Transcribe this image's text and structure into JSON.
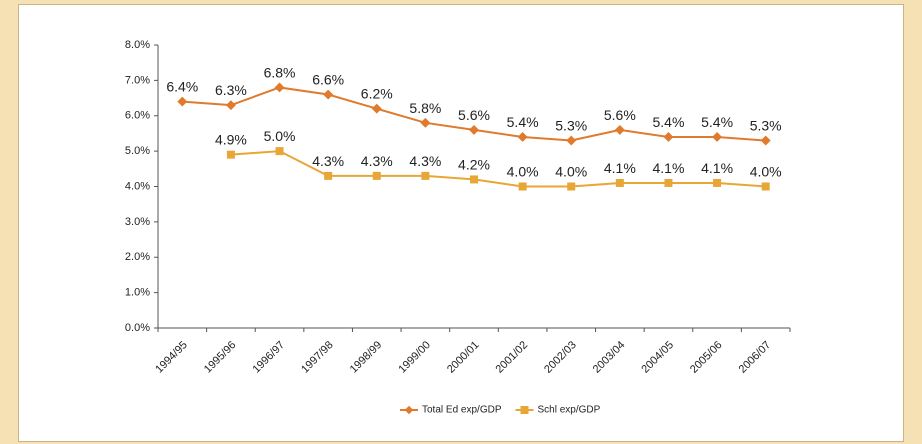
{
  "chart_data": {
    "type": "line",
    "categories": [
      "1994/95",
      "1995/96",
      "1996/97",
      "1997/98",
      "1998/99",
      "1999/00",
      "2000/01",
      "2001/02",
      "2002/03",
      "2003/04",
      "2004/05",
      "2005/06",
      "2006/07"
    ],
    "series": [
      {
        "name": "Total Ed exp/GDP",
        "color": "#e07a2c",
        "marker": "diamond",
        "values": [
          6.4,
          6.3,
          6.8,
          6.6,
          6.2,
          5.8,
          5.6,
          5.4,
          5.3,
          5.6,
          5.4,
          5.4,
          5.3
        ],
        "value_labels": [
          "6.4%",
          "6.3%",
          "6.8%",
          "6.6%",
          "6.2%",
          "5.8%",
          "5.6%",
          "5.4%",
          "5.3%",
          "5.6%",
          "5.4%",
          "5.4%",
          "5.3%"
        ]
      },
      {
        "name": "Schl exp/GDP",
        "color": "#e8a636",
        "marker": "square",
        "values": [
          null,
          4.9,
          5.0,
          4.3,
          4.3,
          4.3,
          4.2,
          4.0,
          4.0,
          4.1,
          4.1,
          4.1,
          4.0
        ],
        "value_labels": [
          null,
          "4.9%",
          "5.0%",
          "4.3%",
          "4.3%",
          "4.3%",
          "4.2%",
          "4.0%",
          "4.0%",
          "4.1%",
          "4.1%",
          "4.1%",
          "4.0%"
        ]
      }
    ],
    "ylim": [
      0,
      8
    ],
    "yticks": [
      {
        "value": 0,
        "label": "0.0%"
      },
      {
        "value": 1,
        "label": "1.0%"
      },
      {
        "value": 2,
        "label": "2.0%"
      },
      {
        "value": 3,
        "label": "3.0%"
      },
      {
        "value": 4,
        "label": "4.0%"
      },
      {
        "value": 5,
        "label": "5.0%"
      },
      {
        "value": 6,
        "label": "6.0%"
      },
      {
        "value": 7,
        "label": "7.0%"
      },
      {
        "value": 8,
        "label": "8.0%"
      }
    ],
    "grid": false,
    "legend": "bottom"
  }
}
